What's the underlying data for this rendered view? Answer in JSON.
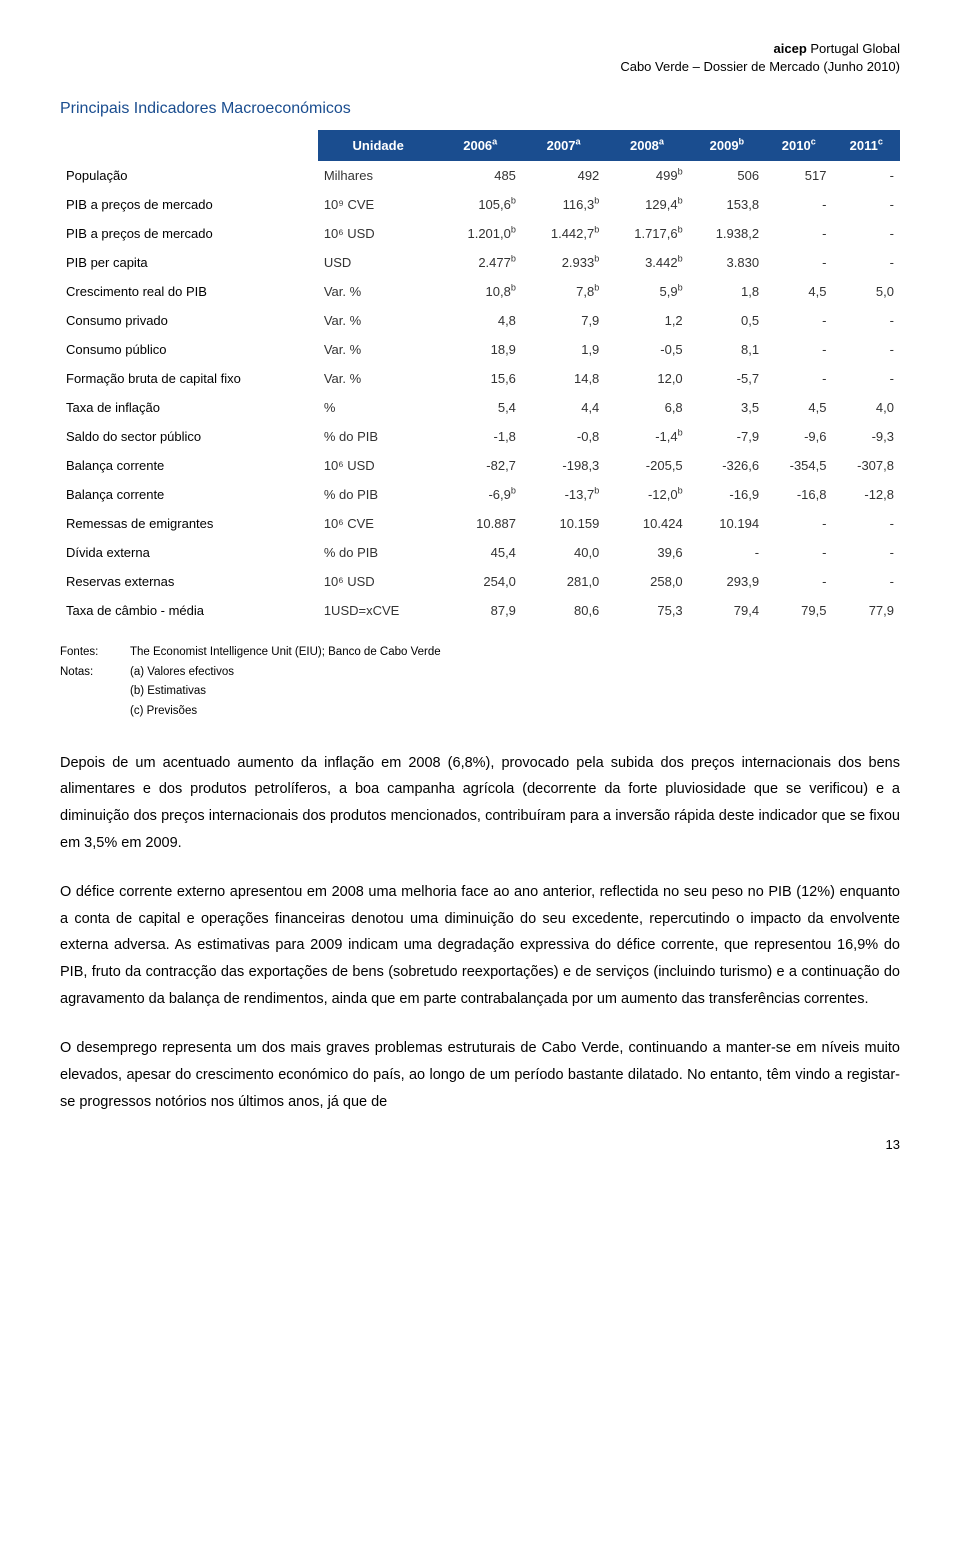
{
  "header": {
    "org": "aicep Portugal Global",
    "org_bold_part": "aicep",
    "org_rest": " Portugal Global",
    "subtitle": "Cabo Verde – Dossier de Mercado (Junho 2010)"
  },
  "section_title": "Principais Indicadores Macroeconómicos",
  "table": {
    "header_bg": "#1a4d8f",
    "header_fg": "#ffffff",
    "columns": [
      "",
      "Unidade",
      "2006",
      "2007",
      "2008",
      "2009",
      "2010",
      "2011"
    ],
    "col_sup": [
      "",
      "",
      "a",
      "a",
      "a",
      "b",
      "c",
      "c"
    ],
    "rows": [
      {
        "label": "População",
        "unit": "Milhares",
        "v": [
          "485",
          "492",
          "499",
          "506",
          "517",
          "-"
        ],
        "sup": [
          "",
          "",
          "b",
          "",
          "",
          ""
        ]
      },
      {
        "label": "PIB a preços de mercado",
        "unit": "10⁹ CVE",
        "v": [
          "105,6",
          "116,3",
          "129,4",
          "153,8",
          "-",
          "-"
        ],
        "sup": [
          "b",
          "b",
          "b",
          "",
          "",
          ""
        ]
      },
      {
        "label": "PIB a preços de mercado",
        "unit": "10⁶ USD",
        "v": [
          "1.201,0",
          "1.442,7",
          "1.717,6",
          "1.938,2",
          "-",
          "-"
        ],
        "sup": [
          "b",
          "b",
          "b",
          "",
          "",
          ""
        ]
      },
      {
        "label": "PIB per capita",
        "unit": "USD",
        "v": [
          "2.477",
          "2.933",
          "3.442",
          "3.830",
          "-",
          "-"
        ],
        "sup": [
          "b",
          "b",
          "b",
          "",
          "",
          ""
        ]
      },
      {
        "label": "Crescimento real do PIB",
        "unit": "Var. %",
        "v": [
          "10,8",
          "7,8",
          "5,9",
          "1,8",
          "4,5",
          "5,0"
        ],
        "sup": [
          "b",
          "b",
          "b",
          "",
          "",
          ""
        ]
      },
      {
        "label": "Consumo privado",
        "unit": "Var. %",
        "v": [
          "4,8",
          "7,9",
          "1,2",
          "0,5",
          "-",
          "-"
        ],
        "sup": [
          "",
          "",
          "",
          "",
          "",
          ""
        ]
      },
      {
        "label": "Consumo público",
        "unit": "Var. %",
        "v": [
          "18,9",
          "1,9",
          "-0,5",
          "8,1",
          "-",
          "-"
        ],
        "sup": [
          "",
          "",
          "",
          "",
          "",
          ""
        ]
      },
      {
        "label": "Formação bruta de capital fixo",
        "unit": "Var. %",
        "v": [
          "15,6",
          "14,8",
          "12,0",
          "-5,7",
          "-",
          "-"
        ],
        "sup": [
          "",
          "",
          "",
          "",
          "",
          ""
        ]
      },
      {
        "label": "Taxa de inflação",
        "unit": "%",
        "v": [
          "5,4",
          "4,4",
          "6,8",
          "3,5",
          "4,5",
          "4,0"
        ],
        "sup": [
          "",
          "",
          "",
          "",
          "",
          ""
        ]
      },
      {
        "label": "Saldo do sector público",
        "unit": "% do PIB",
        "v": [
          "-1,8",
          "-0,8",
          "-1,4",
          "-7,9",
          "-9,6",
          "-9,3"
        ],
        "sup": [
          "",
          "",
          "b",
          "",
          "",
          ""
        ]
      },
      {
        "label": "Balança corrente",
        "unit": "10⁶ USD",
        "v": [
          "-82,7",
          "-198,3",
          "-205,5",
          "-326,6",
          "-354,5",
          "-307,8"
        ],
        "sup": [
          "",
          "",
          "",
          "",
          "",
          ""
        ]
      },
      {
        "label": "Balança corrente",
        "unit": "% do PIB",
        "v": [
          "-6,9",
          "-13,7",
          "-12,0",
          "-16,9",
          "-16,8",
          "-12,8"
        ],
        "sup": [
          "b",
          "b",
          "b",
          "",
          "",
          ""
        ]
      },
      {
        "label": "Remessas de emigrantes",
        "unit": "10⁶ CVE",
        "v": [
          "10.887",
          "10.159",
          "10.424",
          "10.194",
          "-",
          "-"
        ],
        "sup": [
          "",
          "",
          "",
          "",
          "",
          ""
        ]
      },
      {
        "label": "Dívida externa",
        "unit": "% do PIB",
        "v": [
          "45,4",
          "40,0",
          "39,6",
          "-",
          "-",
          "-"
        ],
        "sup": [
          "",
          "",
          "",
          "",
          "",
          ""
        ]
      },
      {
        "label": "Reservas externas",
        "unit": "10⁶ USD",
        "v": [
          "254,0",
          "281,0",
          "258,0",
          "293,9",
          "-",
          "-"
        ],
        "sup": [
          "",
          "",
          "",
          "",
          "",
          ""
        ]
      },
      {
        "label": "Taxa de câmbio - média",
        "unit": "1USD=xCVE",
        "v": [
          "87,9",
          "80,6",
          "75,3",
          "79,4",
          "79,5",
          "77,9"
        ],
        "sup": [
          "",
          "",
          "",
          "",
          "",
          ""
        ]
      }
    ]
  },
  "footnotes": {
    "fontes_label": "Fontes:",
    "fontes_text": "The Economist Intelligence Unit (EIU); Banco de Cabo Verde",
    "notas_label": "Notas:",
    "notas_lines": [
      "(a) Valores efectivos",
      "(b) Estimativas",
      "(c) Previsões"
    ]
  },
  "paragraphs": [
    "Depois de um acentuado aumento da inflação em 2008 (6,8%), provocado pela subida dos preços internacionais dos bens alimentares e dos produtos petrolíferos, a boa campanha agrícola (decorrente da forte pluviosidade que se verificou) e a diminuição dos preços internacionais dos produtos mencionados, contribuíram para a inversão rápida deste indicador que se fixou em 3,5% em 2009.",
    "O défice corrente externo apresentou em 2008 uma melhoria face ao ano anterior, reflectida no seu peso no PIB (12%) enquanto a conta de capital e operações financeiras denotou uma diminuição do seu excedente, repercutindo o impacto da envolvente externa adversa. As estimativas para 2009 indicam uma degradação expressiva do défice corrente, que representou 16,9% do PIB, fruto da contracção das exportações de bens (sobretudo reexportações) e de serviços (incluindo turismo) e a continuação do agravamento da balança de rendimentos, ainda que em parte contrabalançada por um aumento das transferências correntes.",
    "O desemprego representa um dos mais graves problemas estruturais de Cabo Verde, continuando a manter-se em níveis muito elevados, apesar do crescimento económico do país, ao longo de um período bastante dilatado. No entanto, têm vindo a registar-se progressos notórios nos últimos anos, já que de"
  ],
  "page_number": "13",
  "colors": {
    "title": "#1a4d8f",
    "header_bg": "#1a4d8f",
    "header_fg": "#ffffff",
    "text": "#000000",
    "background": "#ffffff"
  }
}
